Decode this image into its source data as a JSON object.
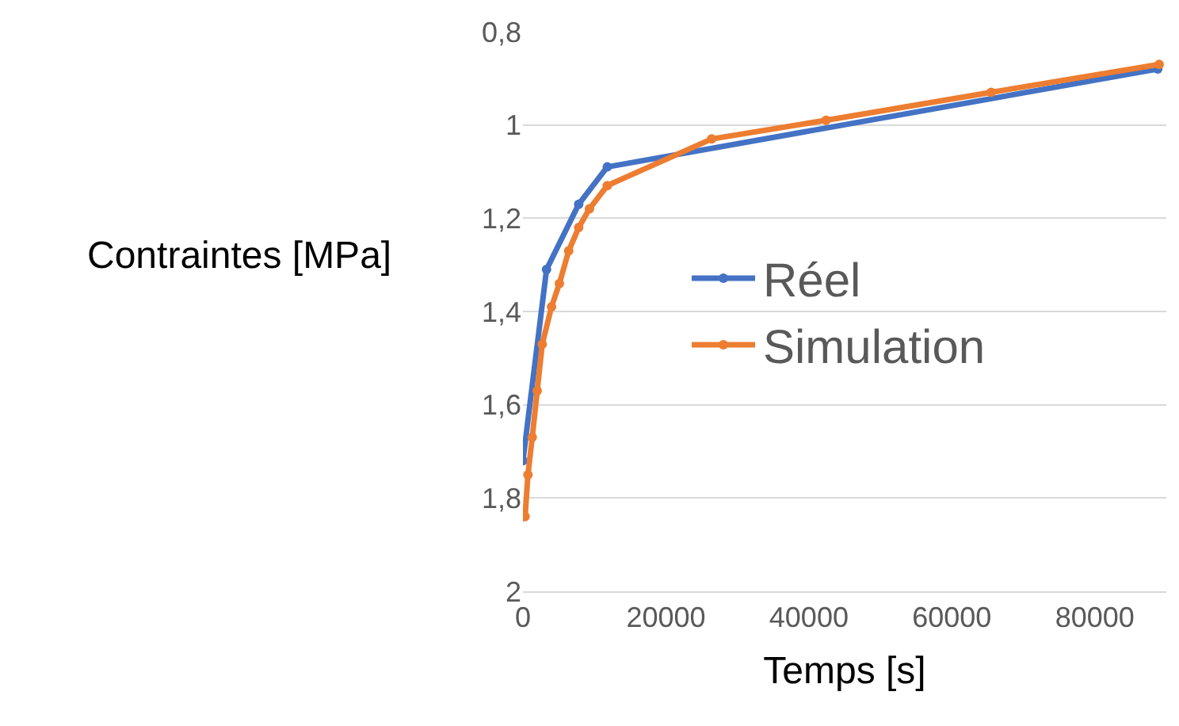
{
  "chart_data": {
    "type": "line",
    "xlabel": "Temps [s]",
    "ylabel": "Contraintes [MPa]",
    "xlim": [
      0,
      90000
    ],
    "xticks": [
      0,
      20000,
      40000,
      60000,
      80000
    ],
    "ylim": [
      2,
      0.8
    ],
    "yticks": [
      {
        "value": 0.8,
        "label": "0,8"
      },
      1,
      {
        "value": 1.2,
        "label": "1,2"
      },
      {
        "value": 1.4,
        "label": "1,4"
      },
      {
        "value": 1.6,
        "label": "1,6"
      },
      {
        "value": 1.8,
        "label": "1,8"
      },
      2
    ],
    "grid": "y",
    "legend": "right",
    "marker": "circle",
    "line_style": "solid",
    "series": [
      {
        "name": "Réel",
        "color": "#4472c4",
        "x": [
          0,
          3300,
          7800,
          11800,
          88800
        ],
        "values": [
          1.72,
          1.31,
          1.17,
          1.09,
          0.88
        ]
      },
      {
        "name": "Simulation",
        "color": "#ed7d31",
        "x": [
          0,
          300,
          700,
          1300,
          2000,
          2700,
          4000,
          5100,
          6400,
          7800,
          9300,
          11800,
          26400,
          42400,
          65500,
          89000
        ],
        "values": [
          1.84,
          1.84,
          1.75,
          1.67,
          1.57,
          1.47,
          1.39,
          1.34,
          1.27,
          1.22,
          1.18,
          1.13,
          1.03,
          0.99,
          0.93,
          0.87
        ]
      }
    ]
  }
}
